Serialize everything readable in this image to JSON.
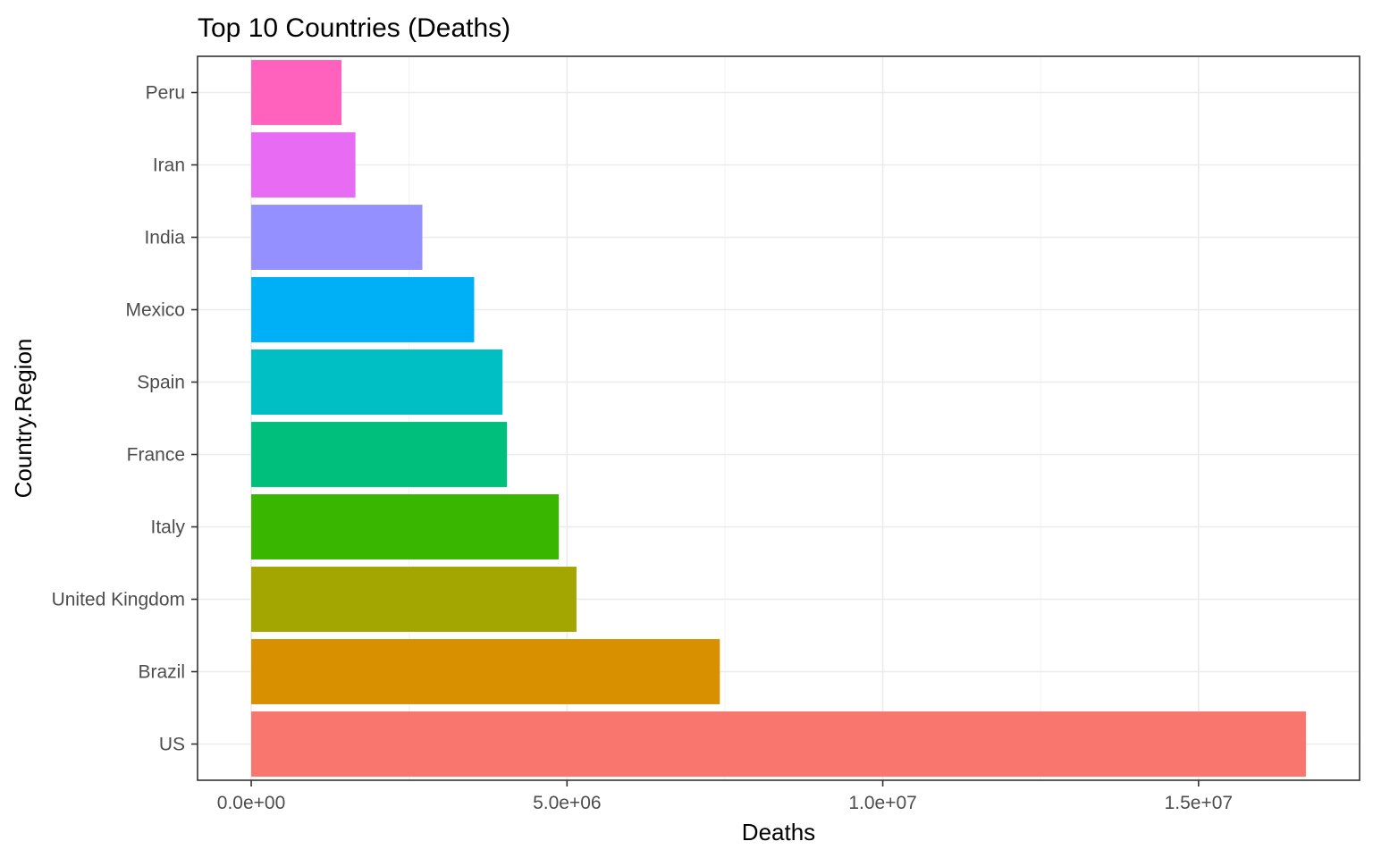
{
  "chart_data": {
    "type": "bar",
    "orientation": "horizontal",
    "title": "Top 10 Countries (Deaths)",
    "xlabel": "Deaths",
    "ylabel": "Country.Region",
    "xlim": [
      -850000,
      17550000
    ],
    "x_ticks": [
      0,
      5000000,
      10000000,
      15000000
    ],
    "x_tick_labels": [
      "0.0e+00",
      "5.0e+06",
      "1.0e+07",
      "1.5e+07"
    ],
    "grid": true,
    "legend": "none",
    "categories": [
      "US",
      "Brazil",
      "United Kingdom",
      "Italy",
      "France",
      "Spain",
      "Mexico",
      "India",
      "Iran",
      "Peru"
    ],
    "values": [
      16700000,
      7420000,
      5150000,
      4870000,
      4050000,
      3980000,
      3530000,
      2710000,
      1650000,
      1430000
    ],
    "colors": [
      "#F8766D",
      "#D89000",
      "#A3A500",
      "#39B600",
      "#00BF7D",
      "#00BFC4",
      "#00B0F6",
      "#9590FF",
      "#E76BF3",
      "#FF62BC"
    ]
  }
}
